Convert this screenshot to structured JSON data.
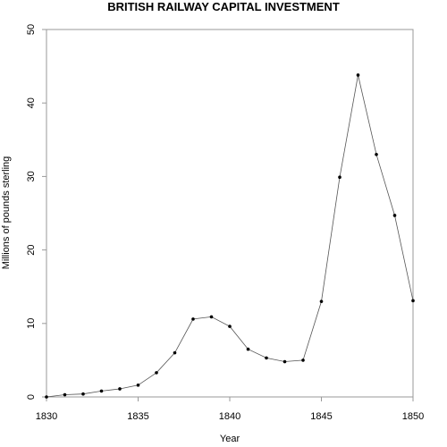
{
  "chart_data": {
    "type": "line",
    "title": "BRITISH RAILWAY CAPITAL INVESTMENT",
    "xlabel": "Year",
    "ylabel": "Millions of pounds sterling",
    "xlim": [
      1830,
      1850
    ],
    "ylim": [
      0,
      50
    ],
    "x_ticks": [
      1830,
      1835,
      1840,
      1845,
      1850
    ],
    "y_ticks": [
      0,
      10,
      20,
      30,
      40,
      50
    ],
    "grid": false,
    "legend": "none",
    "line_color": "#555555",
    "marker_color": "#000000",
    "x": [
      1830,
      1831,
      1832,
      1833,
      1834,
      1835,
      1836,
      1837,
      1838,
      1839,
      1840,
      1841,
      1842,
      1843,
      1844,
      1845,
      1846,
      1847,
      1848,
      1849,
      1850
    ],
    "y": [
      0.0,
      0.3,
      0.4,
      0.8,
      1.1,
      1.6,
      3.3,
      6.0,
      10.6,
      10.9,
      9.6,
      6.5,
      5.3,
      4.8,
      5.0,
      13.0,
      29.9,
      43.8,
      33.0,
      24.7,
      13.1
    ]
  }
}
